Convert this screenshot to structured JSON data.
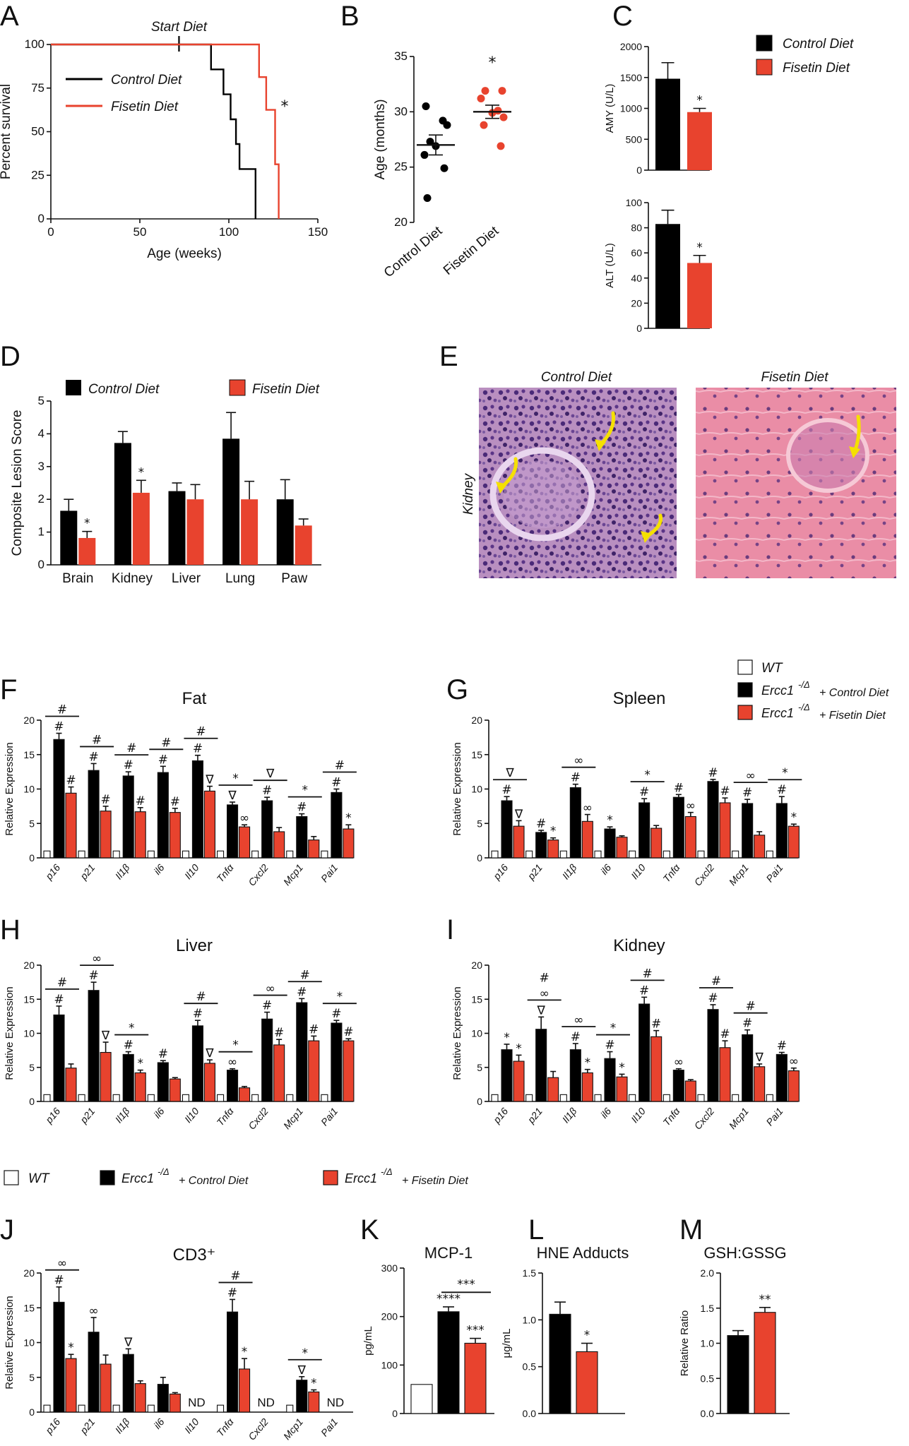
{
  "colors": {
    "control": "#000000",
    "fisetin": "#e8432e",
    "wt": "#ffffff",
    "arrow": "#f5e000"
  },
  "legend_top": {
    "control": "Control Diet",
    "fisetin": "Fisetin Diet"
  },
  "legend_fg": {
    "wt": "WT",
    "control_prefix": "Ercc1",
    "control_sup": "-/Δ",
    "control_suffix": "+ Control Diet",
    "fisetin_prefix": "Ercc1",
    "fisetin_sup": "-/Δ",
    "fisetin_suffix": "+ Fisetin Diet"
  },
  "legend_j": {
    "wt": "WT",
    "control_prefix": "Ercc1",
    "control_sup": "-/Δ",
    "control_suffix": "+ Control Diet",
    "fisetin_prefix": "Ercc1",
    "fisetin_sup": "-/Δ",
    "fisetin_suffix": "+ Fisetin Diet"
  },
  "panelE": {
    "label": "E",
    "left_title": "Control Diet",
    "right_title": "Fisetin Diet",
    "row_label": "Kidney"
  },
  "chart_data": [
    {
      "id": "A",
      "label": "A",
      "type": "line",
      "title": "",
      "xlabel": "Age (weeks)",
      "ylabel": "Percent survival",
      "xlim": [
        0,
        150
      ],
      "ylim": [
        0,
        100
      ],
      "xticks": [
        "0",
        "50",
        "100",
        "150"
      ],
      "yticks": [
        "0",
        "25",
        "50",
        "75",
        "100"
      ],
      "annotation": "Start Diet",
      "annotation_x": 72,
      "sig": "*",
      "series": [
        {
          "name": "Control Diet",
          "steps": [
            [
              0,
              100
            ],
            [
              90,
              100
            ],
            [
              90,
              85.7
            ],
            [
              97,
              85.7
            ],
            [
              97,
              71.4
            ],
            [
              101,
              71.4
            ],
            [
              101,
              57.1
            ],
            [
              104,
              57.1
            ],
            [
              104,
              42.9
            ],
            [
              106,
              42.9
            ],
            [
              106,
              28.6
            ],
            [
              115,
              28.6
            ],
            [
              115,
              0
            ]
          ]
        },
        {
          "name": "Fisetin Diet",
          "steps": [
            [
              0,
              100
            ],
            [
              117,
              100
            ],
            [
              117,
              81.3
            ],
            [
              121,
              81.3
            ],
            [
              121,
              62.5
            ],
            [
              126,
              62.5
            ],
            [
              126,
              31.3
            ],
            [
              128,
              31.3
            ],
            [
              128,
              0
            ]
          ]
        }
      ]
    },
    {
      "id": "B",
      "label": "B",
      "type": "scatter",
      "title": "",
      "xlabel": "",
      "ylabel": "Age (months)",
      "ylim": [
        20,
        35
      ],
      "yticks": [
        "20",
        "25",
        "30",
        "35"
      ],
      "categories": [
        "Control Diet",
        "Fisetin Diet"
      ],
      "sig": "*",
      "series": [
        {
          "name": "Control Diet",
          "values": [
            30.5,
            29.2,
            28.8,
            27.3,
            26.9,
            26.1,
            24.9,
            22.2
          ],
          "mean": 27.0,
          "sem": 0.9
        },
        {
          "name": "Fisetin Diet",
          "values": [
            31.9,
            31.9,
            31.2,
            30.1,
            29.9,
            29.5,
            28.8,
            26.9
          ],
          "mean": 30.0,
          "sem": 0.6
        }
      ]
    },
    {
      "id": "C1",
      "label": "C",
      "type": "bar",
      "title": "",
      "xlabel": "",
      "ylabel": "AMY (U/L)",
      "ylim": [
        0,
        2000
      ],
      "yticks": [
        "0",
        "500",
        "1000",
        "1500",
        "2000"
      ],
      "sig_fisetin": "*",
      "series": [
        {
          "name": "Control Diet",
          "value": 1480,
          "err": 260
        },
        {
          "name": "Fisetin Diet",
          "value": 940,
          "err": 60
        }
      ]
    },
    {
      "id": "C2",
      "label": "",
      "type": "bar",
      "title": "",
      "xlabel": "",
      "ylabel": "ALT (U/L)",
      "ylim": [
        0,
        100
      ],
      "yticks": [
        "0",
        "20",
        "40",
        "60",
        "80",
        "100"
      ],
      "sig_fisetin": "*",
      "series": [
        {
          "name": "Control Diet",
          "value": 83,
          "err": 11
        },
        {
          "name": "Fisetin Diet",
          "value": 52,
          "err": 6
        }
      ]
    },
    {
      "id": "D",
      "label": "D",
      "type": "bar",
      "title": "",
      "xlabel": "",
      "ylabel": "Composite Lesion Score",
      "ylim": [
        0,
        5
      ],
      "yticks": [
        "0",
        "1",
        "2",
        "3",
        "4",
        "5"
      ],
      "categories": [
        "Brain",
        "Kidney",
        "Liver",
        "Lung",
        "Paw"
      ],
      "series": [
        {
          "name": "Control Diet",
          "values": [
            1.65,
            3.72,
            2.25,
            3.85,
            2.0
          ],
          "errors": [
            0.35,
            0.35,
            0.25,
            0.8,
            0.6
          ]
        },
        {
          "name": "Fisetin Diet",
          "values": [
            0.82,
            2.2,
            2.0,
            2.0,
            1.2
          ],
          "errors": [
            0.2,
            0.38,
            0.45,
            0.55,
            0.2
          ]
        }
      ],
      "sig_fisetin": [
        "*",
        "*",
        "",
        "",
        ""
      ]
    },
    {
      "id": "F",
      "label": "F",
      "type": "bar",
      "title": "Fat",
      "xlabel": "",
      "ylabel": "Relative Expression",
      "ylim": [
        0,
        20
      ],
      "yticks": [
        "0",
        "5",
        "10",
        "15",
        "20"
      ],
      "categories": [
        "p16",
        "p21",
        "Il1β",
        "il6",
        "Il10",
        "Tnfα",
        "Cxcl2",
        "Mcp1",
        "Pai1"
      ],
      "series": [
        {
          "name": "WT",
          "values": [
            1,
            1,
            1,
            1,
            1,
            1,
            1,
            1,
            1
          ],
          "errors": [
            0.1,
            0.1,
            0.1,
            0.1,
            0.1,
            0.1,
            0.1,
            0.1,
            0.1
          ]
        },
        {
          "name": "Control Diet",
          "values": [
            17.2,
            12.7,
            11.9,
            12.4,
            14.1,
            7.7,
            8.3,
            6.0,
            9.5
          ],
          "errors": [
            0.9,
            1.0,
            0.6,
            0.9,
            0.8,
            0.4,
            0.5,
            0.4,
            0.5
          ]
        },
        {
          "name": "Fisetin Diet",
          "values": [
            9.4,
            6.8,
            6.7,
            6.6,
            9.7,
            4.5,
            3.8,
            2.6,
            4.2
          ],
          "errors": [
            0.9,
            0.7,
            0.6,
            0.6,
            0.7,
            0.3,
            0.6,
            0.5,
            0.6
          ]
        }
      ],
      "sig_control": [
        "#",
        "#",
        "#",
        "#",
        "#",
        "∇",
        "#",
        "#",
        "#"
      ],
      "sig_fisetin": [
        "#",
        "#",
        "#",
        "#",
        "∇",
        "∞",
        "",
        "",
        "*"
      ],
      "sig_bar": [
        "#",
        "#",
        "#",
        "#",
        "#",
        "*",
        "∇",
        "*",
        "#"
      ]
    },
    {
      "id": "G",
      "label": "G",
      "type": "bar",
      "title": "Spleen",
      "xlabel": "",
      "ylabel": "Relative Expression",
      "ylim": [
        0,
        20
      ],
      "yticks": [
        "0",
        "5",
        "10",
        "15",
        "20"
      ],
      "categories": [
        "p16",
        "p21",
        "Il1β",
        "il6",
        "Il10",
        "Tnfα",
        "Cxcl2",
        "Mcp1",
        "Pai1"
      ],
      "series": [
        {
          "name": "WT",
          "values": [
            1,
            1,
            1,
            1,
            1,
            1,
            1,
            1,
            1
          ],
          "errors": [
            0.1,
            0.1,
            0.1,
            0.1,
            0.1,
            0.1,
            0.1,
            0.1,
            0.1
          ]
        },
        {
          "name": "Control Diet",
          "values": [
            8.3,
            3.7,
            10.2,
            4.2,
            8.0,
            8.8,
            11.1,
            7.9,
            7.9
          ],
          "errors": [
            0.6,
            0.3,
            0.5,
            0.3,
            0.6,
            0.4,
            0.3,
            0.6,
            1.0
          ]
        },
        {
          "name": "Fisetin Diet",
          "values": [
            4.6,
            2.6,
            5.3,
            3.0,
            4.3,
            6.0,
            8.0,
            3.3,
            4.6
          ],
          "errors": [
            0.8,
            0.3,
            1.0,
            0.2,
            0.4,
            0.6,
            0.7,
            0.5,
            0.3
          ]
        }
      ],
      "sig_control": [
        "#",
        "#",
        "#",
        "*",
        "#",
        "#",
        "#",
        "#",
        "#"
      ],
      "sig_fisetin": [
        "∇",
        "*",
        "∞",
        "",
        "",
        "∞",
        "#",
        "",
        "*"
      ],
      "sig_bar": [
        "∇",
        "",
        "∞",
        "",
        "*",
        "",
        "",
        "∞",
        "*"
      ]
    },
    {
      "id": "H",
      "label": "H",
      "type": "bar",
      "title": "Liver",
      "xlabel": "",
      "ylabel": "Relative Expression",
      "ylim": [
        0,
        20
      ],
      "yticks": [
        "0",
        "5",
        "10",
        "15",
        "20"
      ],
      "categories": [
        "p16",
        "p21",
        "Il1β",
        "il6",
        "Il10",
        "Tnfα",
        "Cxcl2",
        "Mcp1",
        "Pai1"
      ],
      "series": [
        {
          "name": "WT",
          "values": [
            1,
            1,
            1,
            1,
            1,
            1,
            1,
            1,
            1
          ],
          "errors": [
            0.1,
            0.1,
            0.1,
            0.1,
            0.1,
            0.1,
            0.1,
            0.1,
            0.1
          ]
        },
        {
          "name": "Control Diet",
          "values": [
            12.7,
            16.3,
            6.9,
            5.7,
            11.1,
            4.6,
            12.1,
            14.5,
            11.5
          ],
          "errors": [
            1.3,
            1.2,
            0.4,
            0.3,
            0.8,
            0.2,
            1.0,
            0.6,
            0.4
          ]
        },
        {
          "name": "Fisetin Diet",
          "values": [
            4.9,
            7.2,
            4.2,
            3.3,
            5.6,
            2.0,
            8.3,
            8.9,
            8.9
          ],
          "errors": [
            0.6,
            1.5,
            0.4,
            0.2,
            0.5,
            0.2,
            0.8,
            0.7,
            0.3
          ]
        }
      ],
      "sig_control": [
        "#",
        "#",
        "#",
        "#",
        "#",
        "∞",
        "#",
        "#",
        "#"
      ],
      "sig_fisetin": [
        "",
        "∇",
        "*",
        "",
        "∇",
        "",
        "#",
        "#",
        "#"
      ],
      "sig_bar": [
        "#",
        "∞",
        "*",
        "",
        "#",
        "*",
        "∞",
        "#",
        "*"
      ]
    },
    {
      "id": "I",
      "label": "I",
      "type": "bar",
      "title": "Kidney",
      "xlabel": "",
      "ylabel": "Relative Expression",
      "ylim": [
        0,
        20
      ],
      "yticks": [
        "0",
        "5",
        "10",
        "15",
        "20"
      ],
      "categories": [
        "p16",
        "p21",
        "Il1β",
        "il6",
        "Il10",
        "Tnfα",
        "Cxcl2",
        "Mcp1",
        "Pai1"
      ],
      "series": [
        {
          "name": "WT",
          "values": [
            1,
            1,
            1,
            1,
            1,
            1,
            1,
            1,
            1
          ],
          "errors": [
            0.1,
            0.1,
            0.1,
            0.1,
            0.1,
            0.1,
            0.1,
            0.1,
            0.1
          ]
        },
        {
          "name": "Control Diet",
          "values": [
            7.6,
            10.6,
            7.6,
            6.3,
            14.3,
            4.6,
            13.5,
            9.8,
            6.9
          ],
          "errors": [
            0.8,
            1.8,
            0.9,
            1.0,
            1.0,
            0.2,
            0.7,
            0.7,
            0.3
          ]
        },
        {
          "name": "Fisetin Diet",
          "values": [
            5.9,
            3.5,
            4.2,
            3.6,
            9.5,
            3.0,
            7.9,
            5.1,
            4.5
          ],
          "errors": [
            0.9,
            0.9,
            0.5,
            0.4,
            0.9,
            0.2,
            1.0,
            0.4,
            0.4
          ]
        }
      ],
      "sig_control": [
        "*",
        "∇",
        "#",
        "#",
        "#",
        "∞",
        "#",
        "#",
        "#"
      ],
      "sig_fisetin": [
        "*",
        "",
        "*",
        "*",
        "#",
        "",
        "#",
        "∇",
        "∞"
      ],
      "sig_bar": [
        "",
        "∞",
        "∞",
        "*",
        "#",
        "",
        "#",
        "#",
        ""
      ],
      "sig_bar_extra": [
        "",
        "#",
        "",
        "",
        "",
        "",
        "",
        "",
        ""
      ]
    },
    {
      "id": "J",
      "label": "J",
      "type": "bar",
      "title": "CD3⁺",
      "xlabel": "",
      "ylabel": "Relative Expression",
      "ylim": [
        0,
        20
      ],
      "yticks": [
        "0",
        "5",
        "10",
        "15",
        "20"
      ],
      "categories": [
        "p16",
        "p21",
        "Il1β",
        "il6",
        "Il10",
        "Tnfα",
        "Cxcl2",
        "Mcp1",
        "Pai1"
      ],
      "series": [
        {
          "name": "WT",
          "values": [
            1,
            1,
            1,
            1,
            null,
            1,
            null,
            1,
            null
          ],
          "errors": [
            0.1,
            0.1,
            0.1,
            0.1,
            0,
            0.1,
            0,
            0.1,
            0
          ]
        },
        {
          "name": "Control Diet",
          "values": [
            15.8,
            11.5,
            8.3,
            4.0,
            null,
            14.4,
            null,
            4.6,
            null
          ],
          "errors": [
            2.2,
            2.1,
            0.8,
            1.0,
            0,
            1.8,
            0,
            0.5,
            0
          ]
        },
        {
          "name": "Fisetin Diet",
          "values": [
            7.7,
            6.9,
            4.1,
            2.6,
            null,
            6.2,
            null,
            2.9,
            null
          ],
          "errors": [
            0.6,
            1.3,
            0.4,
            0.2,
            0,
            1.5,
            0,
            0.3,
            0
          ]
        }
      ],
      "nd": [
        "",
        "",
        "",
        "",
        "ND",
        "",
        "ND",
        "",
        "ND"
      ],
      "sig_control": [
        "#",
        "∞",
        "∇",
        "",
        "",
        "#",
        "",
        "∇",
        ""
      ],
      "sig_fisetin": [
        "*",
        "",
        "",
        "",
        "",
        "*",
        "",
        "*",
        ""
      ],
      "sig_bar": [
        "∞",
        "",
        "",
        "",
        "",
        "#",
        "",
        "*",
        ""
      ]
    },
    {
      "id": "K",
      "label": "K",
      "type": "bar",
      "title": "MCP-1",
      "xlabel": "",
      "ylabel": "pg/mL",
      "ylim": [
        0,
        300
      ],
      "yticks": [
        "0",
        "100",
        "200",
        "300"
      ],
      "series": [
        {
          "name": "WT",
          "value": 60,
          "err": 0
        },
        {
          "name": "Control Diet",
          "value": 210,
          "err": 10
        },
        {
          "name": "Fisetin Diet",
          "value": 145,
          "err": 10
        }
      ],
      "sig_control": "****",
      "sig_fisetin": "***",
      "sig_bar": "***"
    },
    {
      "id": "L",
      "label": "L",
      "type": "bar",
      "title": "HNE Adducts",
      "xlabel": "",
      "ylabel": "μg/mL",
      "ylim": [
        0,
        1.5
      ],
      "yticks": [
        "0.0",
        "0.5",
        "1.0",
        "1.5"
      ],
      "series": [
        {
          "name": "Control Diet",
          "value": 1.06,
          "err": 0.13
        },
        {
          "name": "Fisetin Diet",
          "value": 0.66,
          "err": 0.09
        }
      ],
      "sig_fisetin": "*"
    },
    {
      "id": "M",
      "label": "M",
      "type": "bar",
      "title": "GSH:GSSG",
      "xlabel": "",
      "ylabel": "Relative Ratio",
      "ylim": [
        0,
        2.0
      ],
      "yticks": [
        "0.0",
        "0.5",
        "1.0",
        "1.5",
        "2.0"
      ],
      "series": [
        {
          "name": "Control Diet",
          "value": 1.11,
          "err": 0.07
        },
        {
          "name": "Fisetin Diet",
          "value": 1.44,
          "err": 0.07
        }
      ],
      "sig_fisetin": "**"
    }
  ]
}
